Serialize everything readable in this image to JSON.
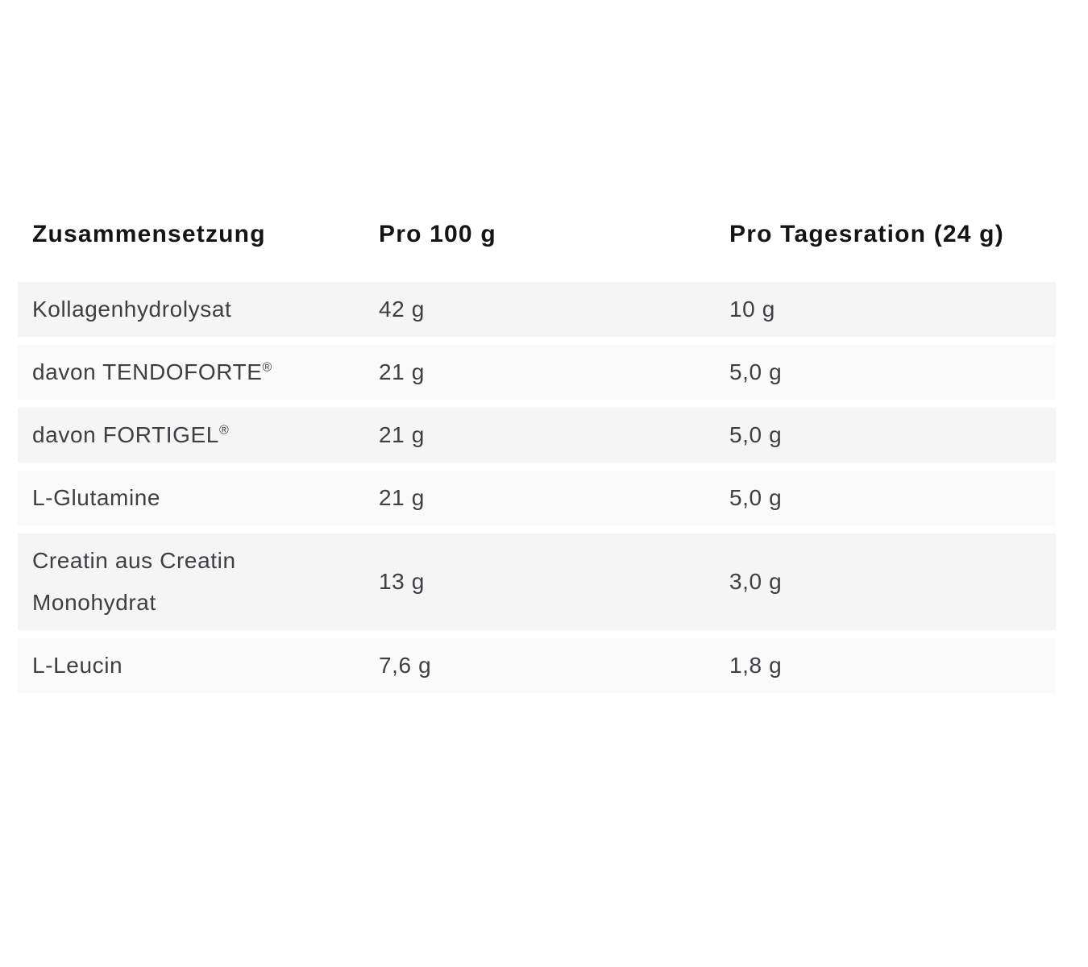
{
  "table": {
    "columns": [
      "Zusammensetzung",
      "Pro 100 g",
      "Pro Tagesration (24 g)"
    ],
    "rows": [
      {
        "name": "Kollagenhydrolysat",
        "registered_mark": "",
        "per_100g": "42 g",
        "per_serving": "10 g"
      },
      {
        "name": "davon TENDOFORTE",
        "registered_mark": "®",
        "per_100g": "21 g",
        "per_serving": "5,0 g"
      },
      {
        "name": "davon FORTIGEL",
        "registered_mark": "®",
        "per_100g": "21 g",
        "per_serving": "5,0 g"
      },
      {
        "name": "L-Glutamine",
        "registered_mark": "",
        "per_100g": "21 g",
        "per_serving": "5,0 g"
      },
      {
        "name": "Creatin aus Creatin Monohydrat",
        "registered_mark": "",
        "per_100g": "13 g",
        "per_serving": "3,0 g"
      },
      {
        "name": "L-Leucin",
        "registered_mark": "",
        "per_100g": "7,6 g",
        "per_serving": "1,8 g"
      }
    ],
    "colors": {
      "page_bg": "#ffffff",
      "row_odd": "#f5f5f6",
      "row_even": "#fafafa",
      "header_text": "#141417",
      "body_text": "#3e3e43"
    }
  }
}
